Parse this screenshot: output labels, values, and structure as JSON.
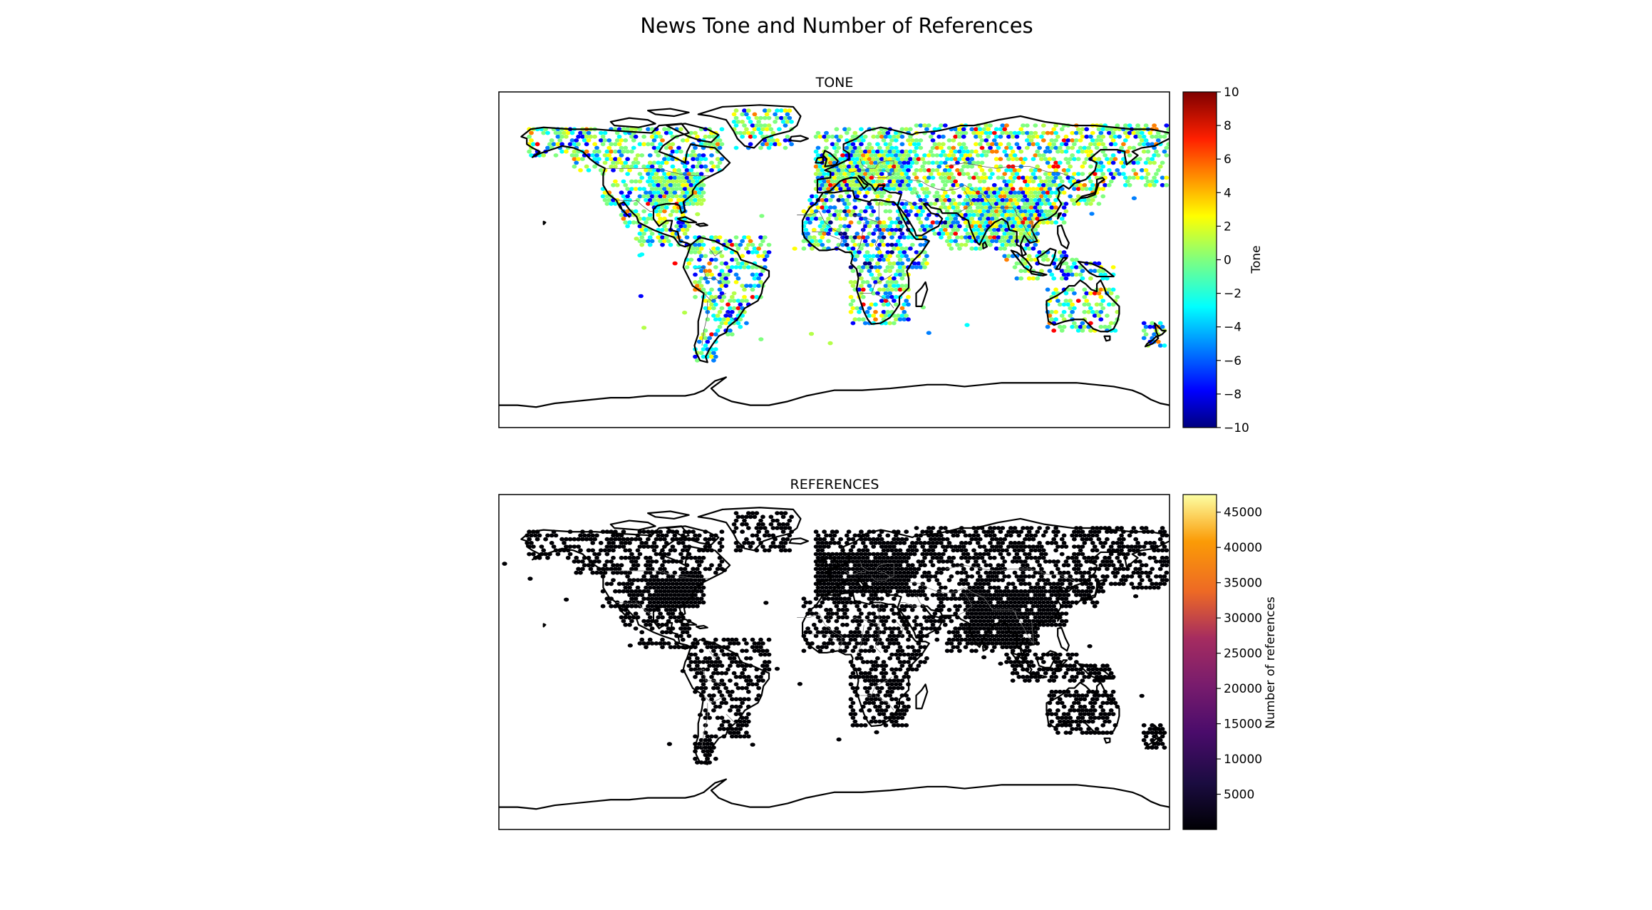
{
  "figure": {
    "title": "News Tone and Number of References"
  },
  "chart_data": [
    {
      "type": "heatmap",
      "title": "TONE",
      "colormap": "jet",
      "colorbar": {
        "label": "Tone",
        "range": [
          -10,
          10
        ],
        "ticks": [
          "10",
          "8",
          "6",
          "4",
          "2",
          "0",
          "−2",
          "−4",
          "−6",
          "−8",
          "−10"
        ]
      },
      "colors": [
        "#00007f",
        "#0000ff",
        "#007fff",
        "#00ffff",
        "#7fff7f",
        "#ffff00",
        "#ff7f00",
        "#ff0000",
        "#7f0000"
      ]
    },
    {
      "type": "heatmap",
      "title": "REFERENCES",
      "colormap": "inferno",
      "colorbar": {
        "label": "Number of references",
        "range": [
          0,
          47500
        ],
        "ticks": [
          "45000",
          "40000",
          "35000",
          "30000",
          "25000",
          "20000",
          "15000",
          "10000",
          "5000"
        ]
      },
      "colors": [
        "#000004",
        "#1b0c41",
        "#4a0c6b",
        "#781c6d",
        "#a52c60",
        "#cf4446",
        "#ed6925",
        "#fb9b06",
        "#f7d13d",
        "#fcffa4"
      ]
    }
  ]
}
